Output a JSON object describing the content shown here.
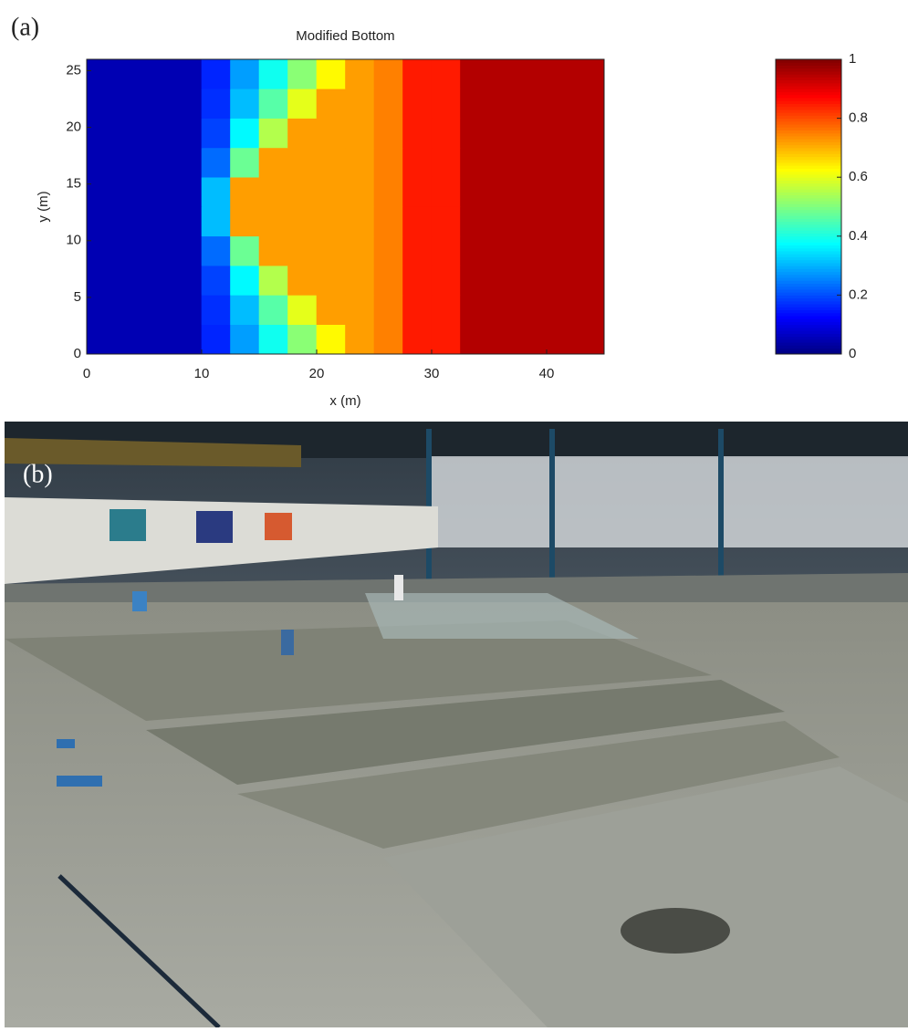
{
  "panel_a_label": "(a)",
  "chart_data": {
    "type": "heatmap",
    "title": "Modified Bottom",
    "x_label": "x (m)",
    "y_label": "y (m)",
    "xbins": [
      0,
      2.5,
      5,
      7.5,
      10,
      12.5,
      15,
      17.5,
      20,
      22.5,
      25,
      27.5,
      30,
      32.5,
      35,
      37.5,
      40,
      42.5,
      45
    ],
    "ybins": [
      0,
      2.6,
      5.2,
      7.8,
      10.4,
      13,
      15.6,
      18.2,
      20.8,
      23.4,
      26
    ],
    "z": [
      [
        0.05,
        0.05,
        0.05,
        0.05,
        0.16,
        0.28,
        0.39,
        0.51,
        0.63,
        0.72,
        0.75,
        0.85,
        0.85,
        0.95,
        0.95,
        0.95,
        0.95,
        0.95
      ],
      [
        0.05,
        0.05,
        0.05,
        0.05,
        0.17,
        0.31,
        0.46,
        0.6,
        0.72,
        0.72,
        0.75,
        0.85,
        0.85,
        0.95,
        0.95,
        0.95,
        0.95,
        0.95
      ],
      [
        0.05,
        0.05,
        0.05,
        0.05,
        0.19,
        0.37,
        0.55,
        0.72,
        0.72,
        0.72,
        0.75,
        0.85,
        0.85,
        0.95,
        0.95,
        0.95,
        0.95,
        0.95
      ],
      [
        0.05,
        0.05,
        0.05,
        0.05,
        0.23,
        0.48,
        0.72,
        0.72,
        0.72,
        0.72,
        0.75,
        0.85,
        0.85,
        0.95,
        0.95,
        0.95,
        0.95,
        0.95
      ],
      [
        0.05,
        0.05,
        0.05,
        0.05,
        0.31,
        0.72,
        0.72,
        0.72,
        0.72,
        0.72,
        0.75,
        0.85,
        0.85,
        0.95,
        0.95,
        0.95,
        0.95,
        0.95
      ],
      [
        0.05,
        0.05,
        0.05,
        0.05,
        0.31,
        0.72,
        0.72,
        0.72,
        0.72,
        0.72,
        0.75,
        0.85,
        0.85,
        0.95,
        0.95,
        0.95,
        0.95,
        0.95
      ],
      [
        0.05,
        0.05,
        0.05,
        0.05,
        0.23,
        0.48,
        0.72,
        0.72,
        0.72,
        0.72,
        0.75,
        0.85,
        0.85,
        0.95,
        0.95,
        0.95,
        0.95,
        0.95
      ],
      [
        0.05,
        0.05,
        0.05,
        0.05,
        0.19,
        0.37,
        0.55,
        0.72,
        0.72,
        0.72,
        0.75,
        0.85,
        0.85,
        0.95,
        0.95,
        0.95,
        0.95,
        0.95
      ],
      [
        0.05,
        0.05,
        0.05,
        0.05,
        0.17,
        0.31,
        0.46,
        0.6,
        0.72,
        0.72,
        0.75,
        0.85,
        0.85,
        0.95,
        0.95,
        0.95,
        0.95,
        0.95
      ],
      [
        0.05,
        0.05,
        0.05,
        0.05,
        0.16,
        0.28,
        0.39,
        0.51,
        0.63,
        0.72,
        0.75,
        0.85,
        0.85,
        0.95,
        0.95,
        0.95,
        0.95,
        0.95
      ]
    ],
    "colormap": "jet",
    "xlim": [
      0,
      45
    ],
    "xticks": [
      0,
      10,
      20,
      30,
      40
    ],
    "ylim": [
      0,
      26
    ],
    "yticks": [
      0,
      5,
      10,
      15,
      20,
      25
    ],
    "clim": [
      0,
      1
    ],
    "cticks": [
      0,
      0.2,
      0.4,
      0.6,
      0.8,
      1
    ]
  },
  "panel_b_label": "(b)"
}
